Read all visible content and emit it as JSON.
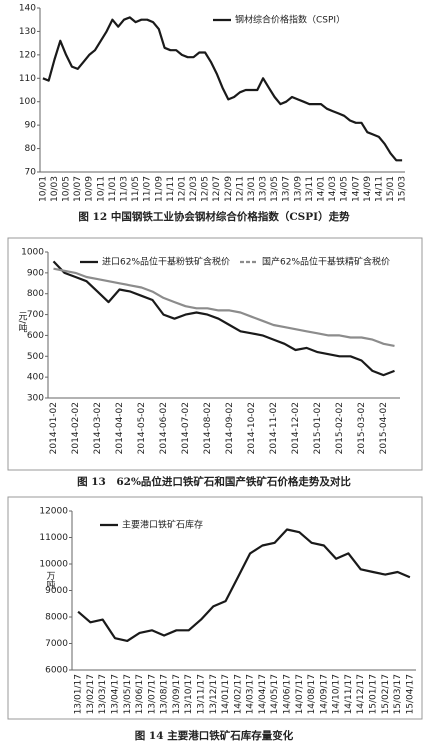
{
  "chart_data": [
    {
      "type": "line",
      "title": "图 12 中国钢铁工业协会钢材综合价格指数（CSPI）走势",
      "categories": [
        "10/01",
        null,
        "10/03",
        null,
        "10/05",
        null,
        "10/07",
        null,
        "10/09",
        null,
        "10/11",
        null,
        "11/01",
        null,
        "11/03",
        null,
        "11/05",
        null,
        "11/07",
        null,
        "11/09",
        null,
        "11/11",
        null,
        "12/01",
        null,
        "12/03",
        null,
        "12/05",
        null,
        "12/07",
        null,
        "12/09",
        null,
        "12/11",
        null,
        "13/01",
        null,
        "13/03",
        null,
        "13/05",
        null,
        "13/07",
        null,
        "13/09",
        null,
        "13/11",
        null,
        "14/01",
        null,
        "14/03",
        null,
        "14/05",
        null,
        "14/07",
        null,
        "14/09",
        null,
        "14/11",
        null,
        "15/01",
        null,
        "15/03"
      ],
      "series": [
        {
          "name": "钢材综合价格指数（CSPI）",
          "color": "#1a1a1a",
          "values": [
            110,
            109,
            118,
            126,
            120,
            115,
            114,
            117,
            120,
            122,
            126,
            130,
            135,
            132,
            135,
            136,
            134,
            135,
            135,
            134,
            131,
            123,
            122,
            122,
            120,
            119,
            119,
            121,
            121,
            117,
            112,
            106,
            101,
            102,
            104,
            105,
            105,
            105,
            110,
            106,
            102,
            99,
            100,
            102,
            101,
            100,
            99,
            99,
            99,
            97,
            96,
            95,
            94,
            92,
            91,
            91,
            87,
            86,
            85,
            82,
            78,
            75,
            75
          ]
        }
      ],
      "ylim": [
        70,
        140
      ],
      "yticks": [
        70,
        80,
        90,
        100,
        110,
        120,
        130,
        140
      ]
    },
    {
      "type": "line",
      "title": "图 13　62%品位进口铁矿石和国产铁矿石价格走势及对比",
      "ylabel": "元/吨",
      "categories": [
        "2014-01-02",
        null,
        "2014-02-02",
        null,
        "2014-03-02",
        null,
        "2014-04-02",
        null,
        "2014-05-02",
        null,
        "2014-06-02",
        null,
        "2014-07-02",
        null,
        "2014-08-02",
        null,
        "2014-09-02",
        null,
        "2014-10-02",
        null,
        "2014-11-02",
        null,
        "2014-12-02",
        null,
        "2015-01-02",
        null,
        "2015-02-02",
        null,
        "2015-03-02",
        null,
        "2015-04-02",
        null
      ],
      "series": [
        {
          "name": "进口62%品位干基粉铁矿含税价",
          "color": "#1a1a1a",
          "values": [
            955,
            900,
            880,
            860,
            810,
            760,
            820,
            810,
            790,
            770,
            700,
            680,
            700,
            710,
            700,
            680,
            650,
            620,
            610,
            600,
            580,
            560,
            530,
            540,
            520,
            510,
            500,
            500,
            480,
            430,
            410,
            430
          ]
        },
        {
          "name": "国产62%品位干基铁精矿含税价",
          "color": "#8c8c8c",
          "values": [
            920,
            910,
            900,
            880,
            870,
            860,
            850,
            840,
            830,
            810,
            780,
            760,
            740,
            730,
            730,
            720,
            720,
            710,
            690,
            670,
            650,
            640,
            630,
            620,
            610,
            600,
            600,
            590,
            590,
            580,
            560,
            550
          ]
        }
      ],
      "ylim": [
        300,
        1000
      ],
      "yticks": [
        300,
        400,
        500,
        600,
        700,
        800,
        900,
        1000
      ]
    },
    {
      "type": "line",
      "title": "图 14 主要港口铁矿石库存量变化",
      "ylabel": "万吨",
      "categories": [
        "13/01/17",
        "13/02/17",
        "13/03/17",
        "13/04/17",
        "13/05/17",
        "13/06/17",
        "13/07/17",
        "13/08/17",
        "13/09/17",
        "13/10/17",
        "13/11/17",
        "13/12/17",
        "14/01/17",
        "14/02/17",
        "14/03/17",
        "14/04/17",
        "14/05/17",
        "14/06/17",
        "14/07/17",
        "14/08/17",
        "14/09/17",
        "14/10/17",
        "14/11/17",
        "14/12/17",
        "15/01/17",
        "15/02/17",
        "15/03/17",
        "15/04/17"
      ],
      "series": [
        {
          "name": "主要港口铁矿石库存",
          "color": "#1a1a1a",
          "values": [
            8200,
            7800,
            7900,
            7200,
            7100,
            7400,
            7500,
            7300,
            7500,
            7500,
            7900,
            8400,
            8600,
            9500,
            10400,
            10700,
            10800,
            11300,
            11200,
            10800,
            10700,
            10200,
            10400,
            9800,
            9700,
            9600,
            9700,
            9500
          ]
        }
      ],
      "ylim": [
        6000,
        12000
      ],
      "yticks": [
        6000,
        7000,
        8000,
        9000,
        10000,
        11000,
        12000
      ]
    }
  ]
}
